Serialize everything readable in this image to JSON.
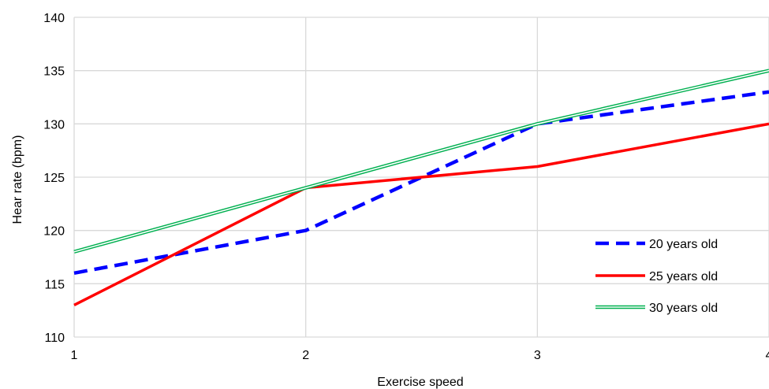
{
  "chart_data": {
    "type": "line",
    "title": "",
    "xlabel": "Exercise speed",
    "ylabel": "Hear rate (bpm)",
    "x": [
      1,
      2,
      3,
      4
    ],
    "x_tick_labels": [
      "1",
      "2",
      "3",
      "4"
    ],
    "y_tick_labels": [
      "110",
      "115",
      "120",
      "125",
      "130",
      "135",
      "140"
    ],
    "xlim": [
      1,
      4
    ],
    "ylim": [
      110,
      140
    ],
    "grid": true,
    "legend_position": "bottom-right",
    "series": [
      {
        "name": "20 years old",
        "values": [
          116,
          120,
          130,
          133
        ],
        "color": "#0000ff",
        "style": "dashed"
      },
      {
        "name": "25 years old",
        "values": [
          113,
          124,
          126,
          130
        ],
        "color": "#ff0000",
        "style": "solid"
      },
      {
        "name": "30 years old",
        "values": [
          118,
          124,
          130,
          135
        ],
        "color": "#00b050",
        "style": "double"
      }
    ]
  }
}
